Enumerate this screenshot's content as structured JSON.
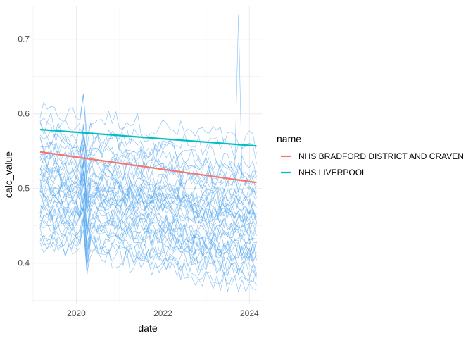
{
  "chart_data": {
    "type": "line",
    "xlabel": "date",
    "ylabel": "calc_value",
    "xlim": [
      "2019-01-01",
      "2024-04-15"
    ],
    "ylim": [
      0.345,
      0.745
    ],
    "x_ticks": [
      "2020",
      "2022",
      "2024"
    ],
    "y_ticks": [
      "0.4",
      "0.5",
      "0.6",
      "0.7"
    ],
    "grid": true,
    "legend": {
      "title": "name",
      "placement": "right",
      "entries": [
        {
          "label": "NHS BRADFORD DISTRICT AND CRAVEN",
          "color": "#f8766d"
        },
        {
          "label": "NHS LIVERPOOL",
          "color": "#00bfc4"
        }
      ]
    },
    "background_series_color": "#56a8f0",
    "background_series_count": 42,
    "background_series_range": {
      "start": "2019-03-01",
      "end": "2024-03-01",
      "points_per_series": 61
    },
    "background_series_base_levels": [
      0.6,
      0.59,
      0.58,
      0.575,
      0.57,
      0.565,
      0.56,
      0.555,
      0.55,
      0.545,
      0.54,
      0.535,
      0.53,
      0.53,
      0.525,
      0.52,
      0.515,
      0.51,
      0.51,
      0.505,
      0.5,
      0.5,
      0.495,
      0.49,
      0.485,
      0.48,
      0.48,
      0.475,
      0.47,
      0.465,
      0.46,
      0.455,
      0.45,
      0.445,
      0.44,
      0.435,
      0.43,
      0.425,
      0.48,
      0.52,
      0.5,
      0.46
    ],
    "background_series_trend_per_year": -0.012,
    "outlier_spike": {
      "x": "2023-10-01",
      "y": 0.733
    },
    "covid_spike": {
      "x": "2020-03-15",
      "y_high": 0.57,
      "y_low": 0.44
    },
    "series": [
      {
        "name": "NHS BRADFORD DISTRICT AND CRAVEN",
        "color": "#f8766d",
        "trend": {
          "x": [
            "2019-03-01",
            "2024-03-01"
          ],
          "y": [
            0.549,
            0.508
          ]
        }
      },
      {
        "name": "NHS LIVERPOOL",
        "color": "#00bfc4",
        "trend": {
          "x": [
            "2019-03-01",
            "2024-03-01"
          ],
          "y": [
            0.579,
            0.557
          ]
        }
      }
    ]
  }
}
